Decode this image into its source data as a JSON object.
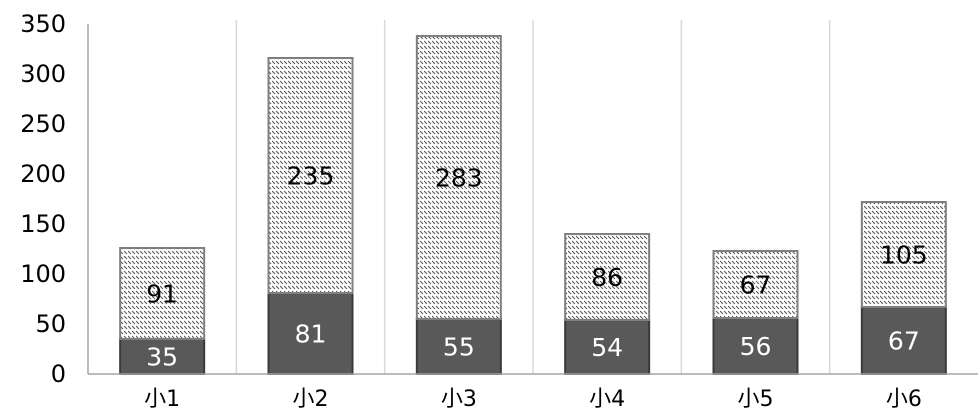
{
  "chart_data": {
    "type": "bar",
    "stacked": true,
    "categories": [
      "小1",
      "小2",
      "小3",
      "小4",
      "小5",
      "小6"
    ],
    "series": [
      {
        "values": [
          35,
          81,
          55,
          54,
          56,
          67
        ],
        "color": "#595959",
        "pattern": "solid",
        "label_color": "#ffffff"
      },
      {
        "values": [
          91,
          235,
          283,
          86,
          67,
          105
        ],
        "color": "#ffffff",
        "pattern": "dashed-diagonal-hatch",
        "label_color": "#000000"
      }
    ],
    "ylim": [
      0,
      350
    ],
    "yticks": [
      0,
      50,
      100,
      150,
      200,
      250,
      300,
      350
    ],
    "grid": "vertical-category-separators",
    "legend": "none",
    "data_labels": true
  }
}
